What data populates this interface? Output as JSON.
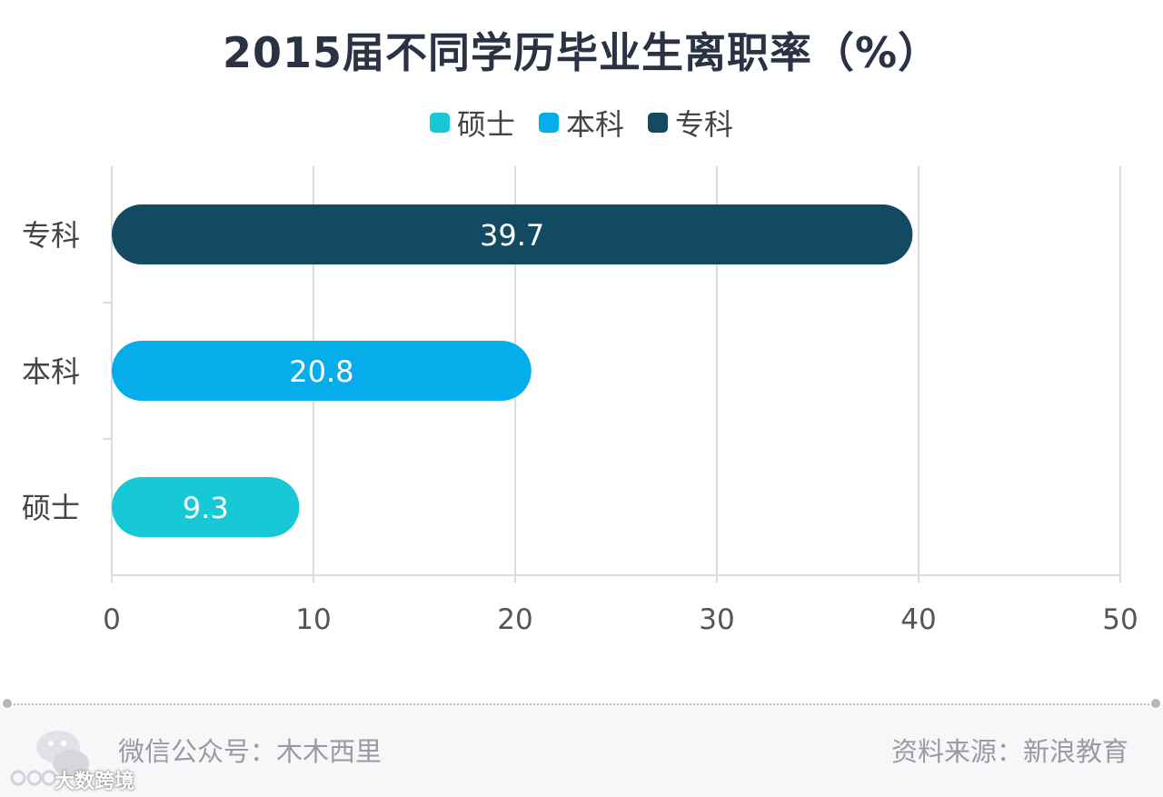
{
  "colors": {
    "master": "#17c9d6",
    "bachelor": "#05aeeb",
    "associate": "#134a63",
    "grid": "#dcdcdf",
    "axis_text": "#555555"
  },
  "chart_data": {
    "type": "bar",
    "orientation": "horizontal",
    "title": "2015届不同学历毕业生离职率（%）",
    "categories": [
      "专科",
      "本科",
      "硕士"
    ],
    "values": [
      39.7,
      20.8,
      9.3
    ],
    "bar_colors": [
      "#134a63",
      "#05aeeb",
      "#17c9d6"
    ],
    "data_labels": [
      "39.7",
      "20.8",
      "9.3"
    ],
    "xlim": [
      0,
      50
    ],
    "xticks": [
      "0",
      "10",
      "20",
      "30",
      "40",
      "50"
    ],
    "xlabel": "",
    "ylabel": "",
    "grid": true,
    "legend": [
      {
        "label": "硕士",
        "color": "#17c9d6"
      },
      {
        "label": "本科",
        "color": "#05aeeb"
      },
      {
        "label": "专科",
        "color": "#134a63"
      }
    ],
    "legend_position": "top-center"
  },
  "footer": {
    "left": "微信公众号：木木西里",
    "right": "资料来源：新浪教育",
    "watermark": "大数跨境",
    "watermark_icon": "wechat-icon"
  }
}
